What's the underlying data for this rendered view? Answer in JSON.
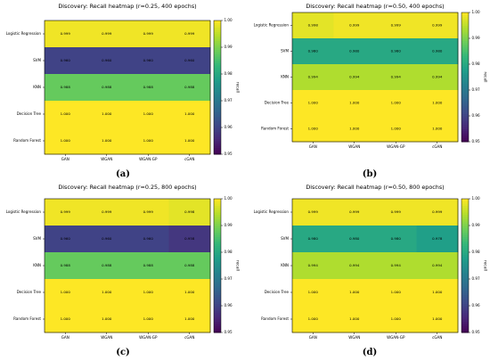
{
  "figure": {
    "panel_labels": [
      "(a)",
      "(b)",
      "(c)",
      "(d)"
    ]
  },
  "colors": {
    "colormap": "viridis",
    "cell_text": "#000000",
    "frame": "#000000"
  },
  "chart_data": [
    {
      "type": "heatmap",
      "title": "Discovery: Recall heatmap (r=0.25, 400 epochs)",
      "rows": [
        "Logistic Regression",
        "SVM",
        "KNN",
        "Decision Tree",
        "Random Forest"
      ],
      "columns": [
        "GAN",
        "WGAN",
        "WGAN-GP",
        "cGAN"
      ],
      "values": [
        [
          0.999,
          0.999,
          0.999,
          0.999
        ],
        [
          0.96,
          0.96,
          0.96,
          0.96
        ],
        [
          0.988,
          0.988,
          0.988,
          0.988
        ],
        [
          1.0,
          1.0,
          1.0,
          1.0
        ],
        [
          1.0,
          1.0,
          1.0,
          1.0
        ]
      ],
      "colorbar": {
        "label": "recall",
        "range": [
          0.95,
          1.0
        ],
        "ticks": [
          "0.95",
          "0.96",
          "0.97",
          "0.98",
          "0.99",
          "1.00"
        ]
      }
    },
    {
      "type": "heatmap",
      "title": "Discovery: Recall heatmap (r=0.50, 400 epochs)",
      "rows": [
        "Logistic Regression",
        "SVM",
        "KNN",
        "Decision Tree",
        "Random Forest"
      ],
      "columns": [
        "GAN",
        "WGAN",
        "WGAN-GP",
        "cGAN"
      ],
      "values": [
        [
          0.998,
          0.999,
          0.999,
          0.999
        ],
        [
          0.98,
          0.98,
          0.98,
          0.98
        ],
        [
          0.994,
          0.994,
          0.994,
          0.994
        ],
        [
          1.0,
          1.0,
          1.0,
          1.0
        ],
        [
          1.0,
          1.0,
          1.0,
          1.0
        ]
      ],
      "colorbar": {
        "label": "recall",
        "range": [
          0.95,
          1.0
        ],
        "ticks": [
          "0.95",
          "0.96",
          "0.97",
          "0.98",
          "0.99",
          "1.00"
        ]
      }
    },
    {
      "type": "heatmap",
      "title": "Discovery: Recall heatmap (r=0.25, 800 epochs)",
      "rows": [
        "Logistic Regression",
        "SVM",
        "KNN",
        "Decision Tree",
        "Random Forest"
      ],
      "columns": [
        "GAN",
        "WGAN",
        "WGAN-GP",
        "cGAN"
      ],
      "values": [
        [
          0.999,
          0.999,
          0.999,
          0.998
        ],
        [
          0.96,
          0.96,
          0.96,
          0.958
        ],
        [
          0.988,
          0.988,
          0.988,
          0.988
        ],
        [
          1.0,
          1.0,
          1.0,
          1.0
        ],
        [
          1.0,
          1.0,
          1.0,
          1.0
        ]
      ],
      "colorbar": {
        "label": "recall",
        "range": [
          0.95,
          1.0
        ],
        "ticks": [
          "0.95",
          "0.96",
          "0.97",
          "0.98",
          "0.99",
          "1.00"
        ]
      }
    },
    {
      "type": "heatmap",
      "title": "Discovery: Recall heatmap (r=0.50, 800 epochs)",
      "rows": [
        "Logistic Regression",
        "SVM",
        "KNN",
        "Decision Tree",
        "Random Forest"
      ],
      "columns": [
        "GAN",
        "WGAN",
        "WGAN-GP",
        "cGAN"
      ],
      "values": [
        [
          0.999,
          0.999,
          0.999,
          0.999
        ],
        [
          0.98,
          0.98,
          0.98,
          0.978
        ],
        [
          0.994,
          0.994,
          0.994,
          0.994
        ],
        [
          1.0,
          1.0,
          1.0,
          1.0
        ],
        [
          1.0,
          1.0,
          1.0,
          1.0
        ]
      ],
      "colorbar": {
        "label": "recall",
        "range": [
          0.95,
          1.0
        ],
        "ticks": [
          "0.95",
          "0.96",
          "0.97",
          "0.98",
          "0.99",
          "1.00"
        ]
      }
    }
  ]
}
